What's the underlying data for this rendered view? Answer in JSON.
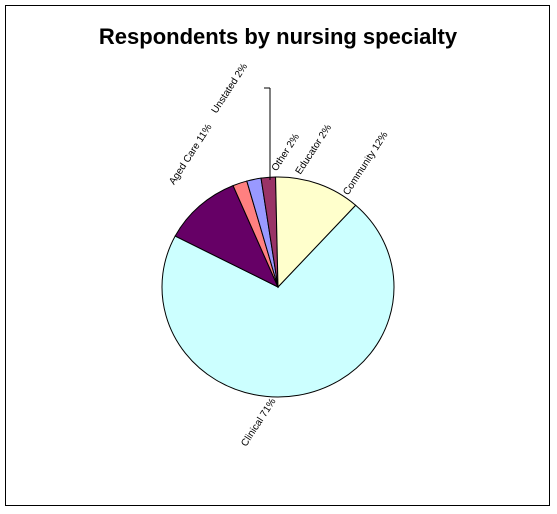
{
  "chart_data": {
    "type": "pie",
    "title": "Respondents by nursing specialty",
    "slices": [
      {
        "label": "Clinical",
        "display": "Clinical 71%",
        "value": 71,
        "color": "#CCFFFF"
      },
      {
        "label": "Aged Care",
        "display": "Aged Care 11%",
        "value": 11,
        "color": "#660066"
      },
      {
        "label": "Unstated",
        "display": "Unstated 2%",
        "value": 2,
        "color": "#FF8080"
      },
      {
        "label": "Other",
        "display": "Other 2%",
        "value": 2,
        "color": "#9999FF"
      },
      {
        "label": "Educator",
        "display": "Educator 2%",
        "value": 2,
        "color": "#993366"
      },
      {
        "label": "Community",
        "display": "Community 12%",
        "value": 12,
        "color": "#FFFFCC"
      }
    ],
    "legend": false
  }
}
